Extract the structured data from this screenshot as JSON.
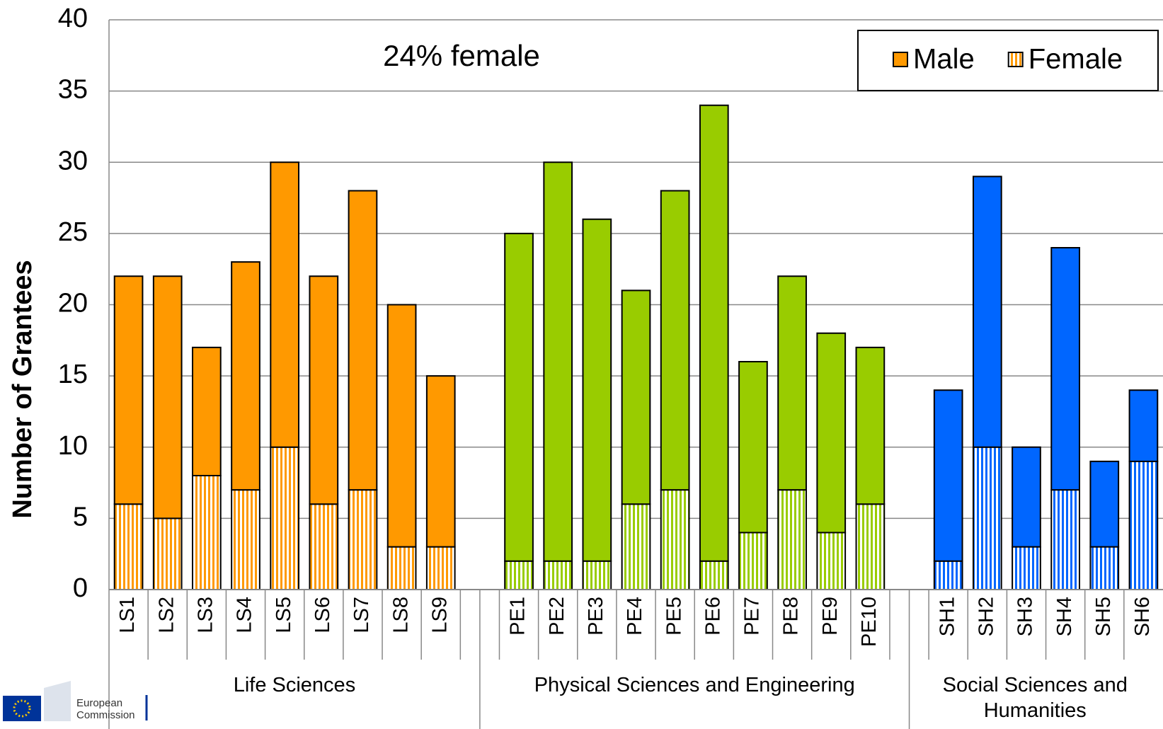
{
  "chart_data": {
    "type": "stacked_bar",
    "annotation": "24% female",
    "y_label": "Number of Grantees",
    "categories": [
      "LS1",
      "LS2",
      "LS3",
      "LS4",
      "LS5",
      "LS6",
      "LS7",
      "LS8",
      "LS9",
      null,
      "PE1",
      "PE2",
      "PE3",
      "PE4",
      "PE5",
      "PE6",
      "PE7",
      "PE8",
      "PE9",
      "PE10",
      null,
      "SH1",
      "SH2",
      "SH3",
      "SH4",
      "SH5",
      "SH6"
    ],
    "series": [
      {
        "name": "Female",
        "pattern": "vertical-stripes",
        "values": [
          6,
          5,
          8,
          7,
          10,
          6,
          7,
          3,
          3,
          null,
          2,
          2,
          2,
          6,
          7,
          2,
          4,
          7,
          4,
          6,
          null,
          2,
          10,
          3,
          7,
          3,
          9
        ]
      },
      {
        "name": "Male",
        "pattern": "solid",
        "values": [
          16,
          17,
          9,
          16,
          20,
          16,
          21,
          17,
          12,
          null,
          23,
          28,
          24,
          15,
          21,
          32,
          12,
          15,
          14,
          11,
          null,
          12,
          19,
          7,
          17,
          6,
          5
        ]
      }
    ],
    "groups": [
      {
        "label": "Life Sciences",
        "color": "#ff9900"
      },
      {
        "label": "Physical Sciences and Engineering",
        "color": "#99cc00"
      },
      {
        "label": "Social Sciences and Humanities",
        "color": "#0066ff"
      }
    ],
    "legend_order": [
      1,
      0
    ],
    "legend_position": "upper right",
    "ylim": [
      0,
      40
    ],
    "yticks": [
      0,
      5,
      10,
      15,
      20,
      25,
      30,
      35,
      40
    ],
    "grid": true
  },
  "logo": "European Commission"
}
